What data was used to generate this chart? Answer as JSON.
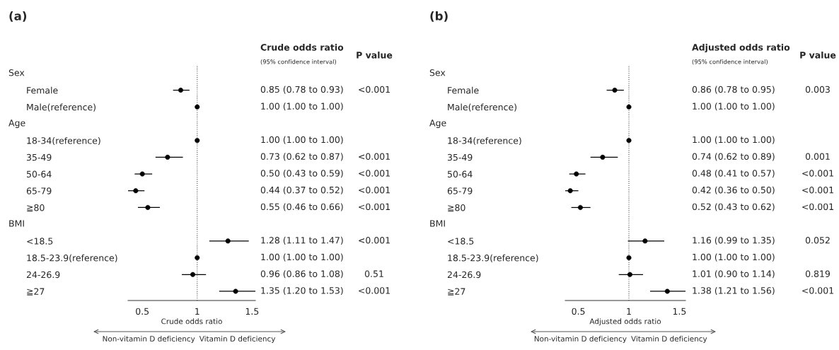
{
  "chart_data": [
    {
      "type": "scatter",
      "orientation": "horizontal",
      "title": "(a)",
      "xlabel": "Crude odds ratio",
      "marker": "circle",
      "color": "#000000",
      "categories": [
        null,
        "Female",
        "Male(reference)",
        null,
        "18-34(reference)",
        "35-49",
        "50-64",
        "65-79",
        "≧80",
        null,
        "<18.5",
        "18.5-23.9(reference)",
        "24-26.9",
        "≧27"
      ],
      "values": [
        null,
        0.85,
        1.0,
        null,
        1.0,
        0.73,
        0.5,
        0.44,
        0.55,
        null,
        1.28,
        1.0,
        0.96,
        1.35
      ],
      "errors": [
        null,
        [
          0.78,
          0.93
        ],
        null,
        null,
        null,
        [
          0.62,
          0.87
        ],
        [
          0.43,
          0.59
        ],
        [
          0.37,
          0.52
        ],
        [
          0.46,
          0.66
        ],
        null,
        [
          1.11,
          1.47
        ],
        null,
        [
          0.86,
          1.08
        ],
        [
          1.2,
          1.53
        ]
      ],
      "value_labels": [
        null,
        "0.85 (0.78 to 0.93)",
        "1.00 (1.00 to 1.00)",
        null,
        "1.00 (1.00 to 1.00)",
        "0.73 (0.62 to 0.87)",
        "0.50 (0.43 to 0.59)",
        "0.44 (0.37 to 0.52)",
        "0.55 (0.46 to 0.66)",
        null,
        "1.28 (1.11 to 1.47)",
        "1.00 (1.00 to 1.00)",
        "0.96 (0.86 to 1.08)",
        "1.35 (1.20 to 1.53)"
      ],
      "xlim": [
        0.37,
        1.53
      ],
      "xticks": [
        0.5,
        1,
        1.5
      ],
      "ref_lines": [
        {
          "axis": "x",
          "value": 1,
          "color": "#555555",
          "line_style": "dotted"
        }
      ],
      "annotations": [
        "Crude odds ratio",
        "(95% confidence interval)",
        "P value",
        "Non-vitamin D deficiency",
        "Vitamin D deficiency",
        "Sex",
        "Age",
        "BMI",
        "<0.001",
        "<0.001",
        "<0.001",
        "<0.001",
        "<0.001",
        "<0.001",
        "0.51",
        "<0.001"
      ]
    },
    {
      "type": "scatter",
      "orientation": "horizontal",
      "title": "(b)",
      "xlabel": "Adjusted odds ratio",
      "marker": "circle",
      "color": "#000000",
      "categories": [
        null,
        "Female",
        "Male(reference)",
        null,
        "18-34(reference)",
        "35-49",
        "50-64",
        "65-79",
        "≧80",
        null,
        "<18.5",
        "18.5-23.9(reference)",
        "24-26.9",
        "≧27"
      ],
      "values": [
        null,
        0.86,
        1.0,
        null,
        1.0,
        0.74,
        0.48,
        0.42,
        0.52,
        null,
        1.16,
        1.0,
        1.01,
        1.38
      ],
      "errors": [
        null,
        [
          0.78,
          0.95
        ],
        null,
        null,
        null,
        [
          0.62,
          0.89
        ],
        [
          0.41,
          0.57
        ],
        [
          0.36,
          0.5
        ],
        [
          0.43,
          0.62
        ],
        null,
        [
          0.99,
          1.35
        ],
        null,
        [
          0.9,
          1.14
        ],
        [
          1.21,
          1.56
        ]
      ],
      "value_labels": [
        null,
        "0.86 (0.78 to 0.95)",
        "1.00 (1.00 to 1.00)",
        null,
        "1.00 (1.00 to 1.00)",
        "0.74 (0.62 to 0.89)",
        "0.48 (0.41 to 0.57)",
        "0.42 (0.36 to 0.50)",
        "0.52 (0.43 to 0.62)",
        null,
        "1.16 (0.99 to 1.35)",
        "1.00 (1.00 to 1.00)",
        "1.01 (0.90 to 1.14)",
        "1.38 (1.21 to 1.56)"
      ],
      "xlim": [
        0.37,
        1.56
      ],
      "xticks": [
        0.5,
        1,
        1.5
      ],
      "ref_lines": [
        {
          "axis": "x",
          "value": 1,
          "color": "#555555",
          "line_style": "dotted"
        }
      ],
      "annotations": [
        "Adjusted odds ratio",
        "(95% confidence interval)",
        "P value",
        "Non-vitamin D deficiency",
        "Vitamin D deficiency",
        "Sex",
        "Age",
        "BMI",
        "0.003",
        "0.001",
        "<0.001",
        "<0.001",
        "<0.001",
        "0.052",
        "0.819",
        "<0.001"
      ]
    }
  ]
}
